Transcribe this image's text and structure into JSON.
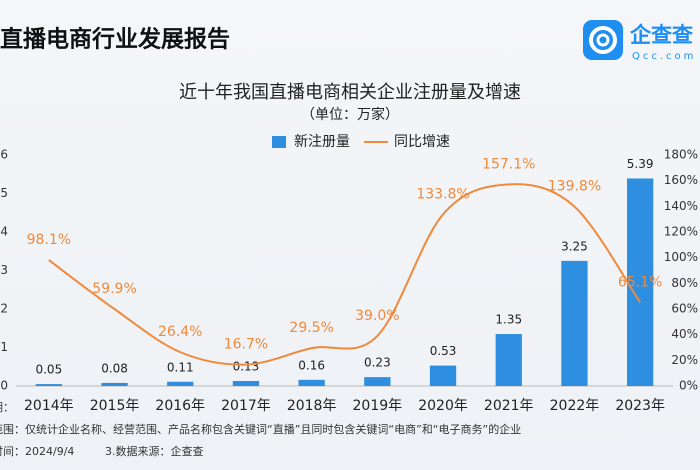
{
  "header": {
    "title": "直播电商行业发展报告",
    "logo_text": "企查查",
    "logo_url": "Qcc.com"
  },
  "chart_data": {
    "type": "bar-line",
    "title": "近十年我国直播电商相关企业注册量及增速",
    "subtitle": "（单位：万家）",
    "categories": [
      "2014年",
      "2015年",
      "2016年",
      "2017年",
      "2018年",
      "2019年",
      "2020年",
      "2021年",
      "2022年",
      "2023年"
    ],
    "series": [
      {
        "name": "新注册量",
        "type": "bar",
        "color": "#2e8fe0",
        "values": [
          0.05,
          0.08,
          0.11,
          0.13,
          0.16,
          0.23,
          0.53,
          1.35,
          3.25,
          5.39
        ]
      },
      {
        "name": "同比增速",
        "type": "line",
        "axis": "y2",
        "color": "#ee8a3c",
        "values": [
          98.1,
          59.9,
          26.4,
          16.7,
          29.5,
          39.0,
          133.8,
          157.1,
          139.8,
          65.1
        ],
        "value_labels": [
          "98.1%",
          "59.9%",
          "26.4%",
          "16.7%",
          "29.5%",
          "39.0%",
          "133.8%",
          "157.1%",
          "139.8%",
          "65.1%"
        ]
      }
    ],
    "ylim": [
      0,
      6
    ],
    "yticks": [
      0,
      1,
      2,
      3,
      4,
      5,
      6
    ],
    "y2lim": [
      0,
      180
    ],
    "y2ticks": [
      {
        "value": 0,
        "label": "0%"
      },
      {
        "value": 20,
        "label": "20%"
      },
      {
        "value": 40,
        "label": "40%"
      },
      {
        "value": 60,
        "label": "60%"
      },
      {
        "value": 80,
        "label": "80%"
      },
      {
        "value": 100,
        "label": "100%"
      },
      {
        "value": 120,
        "label": "120%"
      },
      {
        "value": 140,
        "label": "140%"
      },
      {
        "value": 160,
        "label": "160%"
      },
      {
        "value": 180,
        "label": "180%"
      }
    ]
  },
  "notes": [
    "明：",
    "范围：仅统计企业名称、经营范围、产品名称包含关键词“直播”且同时包含关键词“电商”和“电子商务”的企业",
    "时间：2024/9/4",
    "3.数据来源：企查查"
  ]
}
